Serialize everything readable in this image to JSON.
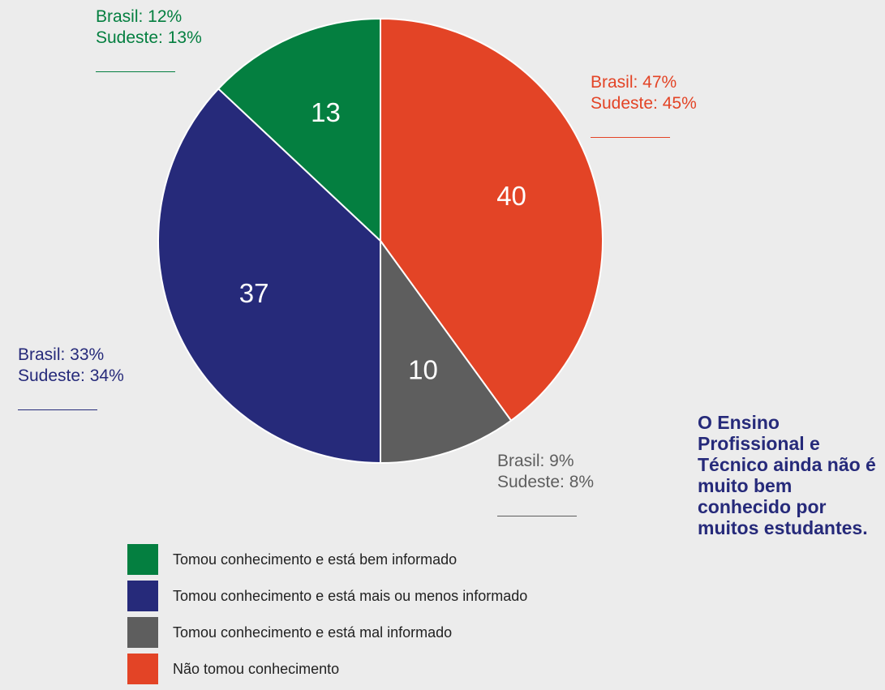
{
  "chart_data": {
    "type": "pie",
    "slices": [
      {
        "label": "Não tomou conhecimento",
        "value": 40,
        "color": "#e34426"
      },
      {
        "label": "Tomou conhecimento e está mal informado",
        "value": 10,
        "color": "#5e5e5e"
      },
      {
        "label": "Tomou conhecimento e está mais ou menos informado",
        "value": 37,
        "color": "#262a7a"
      },
      {
        "label": "Tomou conhecimento e está bem informado",
        "value": 13,
        "color": "#047f40"
      }
    ],
    "legend": [
      {
        "label": "Tomou conhecimento e está bem informado",
        "color": "#047f40"
      },
      {
        "label": "Tomou conhecimento e está mais ou menos informado",
        "color": "#262a7a"
      },
      {
        "label": "Tomou conhecimento e está mal informado",
        "color": "#5e5e5e"
      },
      {
        "label": "Não tomou conhecimento",
        "color": "#e34426"
      }
    ],
    "annotations": [
      {
        "brasil": "Brasil: 47%",
        "sudeste": "Sudeste: 45%",
        "color": "#e34426"
      },
      {
        "brasil": "Brasil: 9%",
        "sudeste": "Sudeste: 8%",
        "color": "#5e5e5e"
      },
      {
        "brasil": "Brasil: 33%",
        "sudeste": "Sudeste: 34%",
        "color": "#262a7a"
      },
      {
        "brasil": "Brasil: 12%",
        "sudeste": "Sudeste: 13%",
        "color": "#047f40"
      }
    ],
    "legend_position": "bottom-left"
  },
  "note": {
    "text": "O Ensino Profissional e Técnico ainda não é muito bem conhecido por muitos estudantes."
  }
}
